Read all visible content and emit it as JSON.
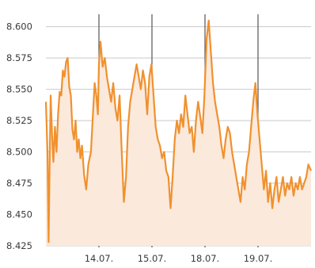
{
  "chart_data": {
    "type": "area",
    "title": "",
    "xlabel": "",
    "ylabel": "",
    "ylim": [
      8.425,
      8.615
    ],
    "yticks": [
      "8.425",
      "8.450",
      "8.475",
      "8.500",
      "8.525",
      "8.550",
      "8.575",
      "8.600"
    ],
    "xticks": [
      {
        "label": "14.07.",
        "x": 1
      },
      {
        "label": "15.07.",
        "x": 2
      },
      {
        "label": "18.07.",
        "x": 3
      },
      {
        "label": "19.07.",
        "x": 4
      }
    ],
    "xlim": [
      0,
      5
    ],
    "grid": true,
    "colors": {
      "line": "#f0912e",
      "fill": "#fbe9dc",
      "grid": "#555555",
      "hgrid": "#c9c9c9"
    },
    "series": [
      {
        "values": [
          [
            0.0,
            8.54
          ],
          [
            0.03,
            8.5
          ],
          [
            0.05,
            8.428
          ],
          [
            0.07,
            8.49
          ],
          [
            0.09,
            8.545
          ],
          [
            0.12,
            8.51
          ],
          [
            0.14,
            8.492
          ],
          [
            0.17,
            8.52
          ],
          [
            0.2,
            8.5
          ],
          [
            0.23,
            8.53
          ],
          [
            0.26,
            8.548
          ],
          [
            0.29,
            8.545
          ],
          [
            0.32,
            8.565
          ],
          [
            0.35,
            8.56
          ],
          [
            0.38,
            8.572
          ],
          [
            0.41,
            8.575
          ],
          [
            0.44,
            8.552
          ],
          [
            0.47,
            8.545
          ],
          [
            0.5,
            8.518
          ],
          [
            0.53,
            8.51
          ],
          [
            0.56,
            8.525
          ],
          [
            0.59,
            8.5
          ],
          [
            0.62,
            8.51
          ],
          [
            0.65,
            8.495
          ],
          [
            0.68,
            8.505
          ],
          [
            0.72,
            8.482
          ],
          [
            0.76,
            8.47
          ],
          [
            0.8,
            8.49
          ],
          [
            0.85,
            8.5
          ],
          [
            0.88,
            8.525
          ],
          [
            0.92,
            8.555
          ],
          [
            0.95,
            8.545
          ],
          [
            0.98,
            8.53
          ],
          [
            1.0,
            8.57
          ],
          [
            1.03,
            8.588
          ],
          [
            1.07,
            8.568
          ],
          [
            1.11,
            8.575
          ],
          [
            1.15,
            8.56
          ],
          [
            1.19,
            8.55
          ],
          [
            1.23,
            8.54
          ],
          [
            1.27,
            8.555
          ],
          [
            1.31,
            8.535
          ],
          [
            1.35,
            8.525
          ],
          [
            1.39,
            8.545
          ],
          [
            1.43,
            8.5
          ],
          [
            1.47,
            8.46
          ],
          [
            1.51,
            8.48
          ],
          [
            1.55,
            8.52
          ],
          [
            1.59,
            8.54
          ],
          [
            1.63,
            8.55
          ],
          [
            1.67,
            8.56
          ],
          [
            1.71,
            8.57
          ],
          [
            1.75,
            8.56
          ],
          [
            1.79,
            8.55
          ],
          [
            1.83,
            8.565
          ],
          [
            1.87,
            8.555
          ],
          [
            1.91,
            8.53
          ],
          [
            1.95,
            8.56
          ],
          [
            1.99,
            8.57
          ],
          [
            2.03,
            8.545
          ],
          [
            2.07,
            8.52
          ],
          [
            2.11,
            8.51
          ],
          [
            2.15,
            8.505
          ],
          [
            2.19,
            8.495
          ],
          [
            2.23,
            8.5
          ],
          [
            2.27,
            8.485
          ],
          [
            2.31,
            8.48
          ],
          [
            2.35,
            8.455
          ],
          [
            2.39,
            8.48
          ],
          [
            2.43,
            8.51
          ],
          [
            2.47,
            8.525
          ],
          [
            2.51,
            8.515
          ],
          [
            2.55,
            8.53
          ],
          [
            2.59,
            8.52
          ],
          [
            2.63,
            8.545
          ],
          [
            2.67,
            8.53
          ],
          [
            2.71,
            8.515
          ],
          [
            2.75,
            8.52
          ],
          [
            2.79,
            8.5
          ],
          [
            2.83,
            8.525
          ],
          [
            2.87,
            8.54
          ],
          [
            2.91,
            8.528
          ],
          [
            2.95,
            8.515
          ],
          [
            2.99,
            8.545
          ],
          [
            3.03,
            8.59
          ],
          [
            3.07,
            8.605
          ],
          [
            3.11,
            8.58
          ],
          [
            3.15,
            8.555
          ],
          [
            3.19,
            8.54
          ],
          [
            3.23,
            8.53
          ],
          [
            3.27,
            8.52
          ],
          [
            3.31,
            8.505
          ],
          [
            3.35,
            8.495
          ],
          [
            3.39,
            8.51
          ],
          [
            3.43,
            8.52
          ],
          [
            3.47,
            8.515
          ],
          [
            3.51,
            8.5
          ],
          [
            3.55,
            8.49
          ],
          [
            3.59,
            8.48
          ],
          [
            3.63,
            8.47
          ],
          [
            3.67,
            8.46
          ],
          [
            3.71,
            8.48
          ],
          [
            3.75,
            8.47
          ],
          [
            3.79,
            8.49
          ],
          [
            3.83,
            8.5
          ],
          [
            3.87,
            8.52
          ],
          [
            3.91,
            8.54
          ],
          [
            3.95,
            8.555
          ],
          [
            3.99,
            8.53
          ],
          [
            4.03,
            8.51
          ],
          [
            4.07,
            8.49
          ],
          [
            4.11,
            8.47
          ],
          [
            4.15,
            8.485
          ],
          [
            4.19,
            8.46
          ],
          [
            4.23,
            8.475
          ],
          [
            4.27,
            8.455
          ],
          [
            4.31,
            8.47
          ],
          [
            4.35,
            8.48
          ],
          [
            4.39,
            8.46
          ],
          [
            4.43,
            8.47
          ],
          [
            4.47,
            8.48
          ],
          [
            4.51,
            8.465
          ],
          [
            4.55,
            8.475
          ],
          [
            4.59,
            8.47
          ],
          [
            4.63,
            8.48
          ],
          [
            4.67,
            8.465
          ],
          [
            4.71,
            8.475
          ],
          [
            4.75,
            8.47
          ],
          [
            4.79,
            8.48
          ],
          [
            4.83,
            8.47
          ],
          [
            4.87,
            8.475
          ],
          [
            4.91,
            8.48
          ],
          [
            4.95,
            8.49
          ],
          [
            5.0,
            8.485
          ]
        ]
      }
    ]
  }
}
